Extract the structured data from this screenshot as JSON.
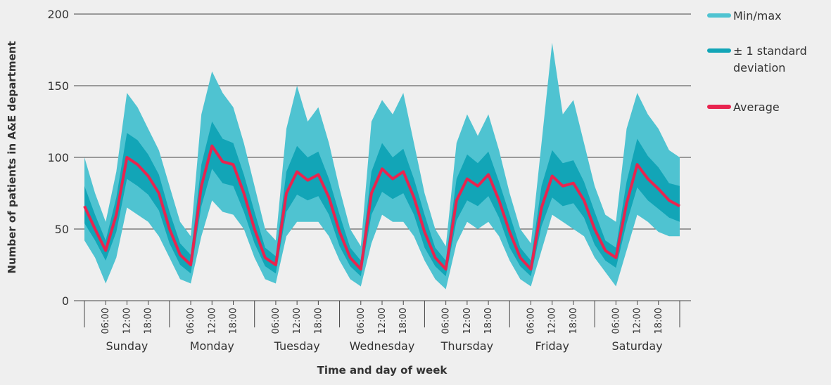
{
  "chart_data": {
    "type": "band-line",
    "y_label": "Number of patients in A&E department",
    "x_label": "Time and day of week",
    "days": [
      "Sunday",
      "Monday",
      "Tuesday",
      "Wednesday",
      "Thursday",
      "Friday",
      "Saturday"
    ],
    "x": [
      0,
      3,
      6,
      9,
      12,
      15,
      18,
      21,
      24,
      27,
      30,
      33,
      36,
      39,
      42,
      45,
      48,
      51,
      54,
      57,
      60,
      63,
      66,
      69,
      72,
      75,
      78,
      81,
      84,
      87,
      90,
      93,
      96,
      99,
      102,
      105,
      108,
      111,
      114,
      117,
      120,
      123,
      126,
      129,
      132,
      135,
      138,
      141,
      144,
      147,
      150,
      153,
      156,
      159,
      162,
      165,
      168
    ],
    "series": [
      {
        "name": "Min/max",
        "color": "#4fc3d1",
        "upper": [
          100,
          75,
          55,
          90,
          145,
          135,
          120,
          105,
          80,
          55,
          45,
          130,
          160,
          145,
          135,
          110,
          80,
          50,
          42,
          120,
          150,
          125,
          135,
          110,
          78,
          50,
          38,
          125,
          140,
          130,
          145,
          110,
          75,
          50,
          38,
          110,
          130,
          115,
          130,
          105,
          75,
          50,
          40,
          110,
          180,
          130,
          140,
          110,
          80,
          60,
          55,
          120,
          145,
          130,
          120,
          105,
          100
        ],
        "lower": [
          42,
          30,
          12,
          30,
          65,
          60,
          55,
          45,
          30,
          15,
          12,
          45,
          70,
          62,
          60,
          50,
          30,
          15,
          12,
          45,
          55,
          55,
          55,
          45,
          28,
          15,
          10,
          40,
          60,
          55,
          55,
          45,
          28,
          15,
          8,
          40,
          55,
          50,
          55,
          45,
          28,
          15,
          10,
          35,
          60,
          55,
          50,
          45,
          30,
          20,
          10,
          35,
          60,
          55,
          48,
          45,
          45
        ]
      },
      {
        "name": "± 1 standard deviation",
        "color": "#12a5b7",
        "upper": [
          80,
          60,
          42,
          72,
          117,
          112,
          102,
          88,
          62,
          40,
          32,
          95,
          125,
          113,
          110,
          88,
          62,
          37,
          31,
          90,
          108,
          100,
          104,
          85,
          60,
          37,
          28,
          90,
          110,
          100,
          106,
          85,
          60,
          37,
          28,
          85,
          102,
          96,
          104,
          83,
          60,
          37,
          28,
          80,
          105,
          96,
          98,
          83,
          62,
          42,
          37,
          83,
          113,
          101,
          93,
          82,
          80
        ],
        "lower": [
          54,
          42,
          28,
          48,
          85,
          80,
          74,
          63,
          40,
          25,
          19,
          66,
          92,
          82,
          80,
          62,
          40,
          24,
          19,
          62,
          74,
          70,
          73,
          60,
          38,
          24,
          17,
          60,
          76,
          71,
          75,
          60,
          37,
          24,
          17,
          56,
          70,
          66,
          73,
          58,
          37,
          24,
          17,
          52,
          72,
          66,
          68,
          58,
          39,
          28,
          23,
          54,
          79,
          70,
          64,
          58,
          55
        ]
      },
      {
        "name": "Average",
        "color": "#e8244f",
        "values": [
          66,
          50,
          35,
          60,
          100,
          95,
          87,
          75,
          50,
          32,
          25,
          80,
          108,
          97,
          95,
          75,
          50,
          30,
          25,
          75,
          90,
          84,
          88,
          72,
          48,
          30,
          22,
          75,
          92,
          85,
          90,
          72,
          48,
          30,
          22,
          70,
          85,
          80,
          88,
          70,
          48,
          30,
          22,
          65,
          87,
          80,
          82,
          70,
          50,
          35,
          30,
          68,
          95,
          85,
          78,
          70,
          66
        ]
      }
    ],
    "xlim": [
      0,
      168
    ],
    "ylim": [
      0,
      200
    ],
    "yticks": [
      0,
      50,
      100,
      150,
      200
    ],
    "day_boundaries": [
      0,
      24,
      48,
      72,
      96,
      120,
      144,
      168
    ],
    "xticks": [
      {
        "value": 6,
        "label": "06:00"
      },
      {
        "value": 12,
        "label": "12:00"
      },
      {
        "value": 18,
        "label": "18:00"
      },
      {
        "value": 30,
        "label": "06:00"
      },
      {
        "value": 36,
        "label": "12:00"
      },
      {
        "value": 42,
        "label": "18:00"
      },
      {
        "value": 54,
        "label": "06:00"
      },
      {
        "value": 60,
        "label": "12:00"
      },
      {
        "value": 66,
        "label": "18:00"
      },
      {
        "value": 78,
        "label": "06:00"
      },
      {
        "value": 84,
        "label": "12:00"
      },
      {
        "value": 90,
        "label": "18:00"
      },
      {
        "value": 102,
        "label": "06:00"
      },
      {
        "value": 108,
        "label": "12:00"
      },
      {
        "value": 114,
        "label": "18:00"
      },
      {
        "value": 126,
        "label": "06:00"
      },
      {
        "value": 132,
        "label": "12:00"
      },
      {
        "value": 138,
        "label": "18:00"
      },
      {
        "value": 150,
        "label": "06:00"
      },
      {
        "value": 156,
        "label": "12:00"
      },
      {
        "value": 162,
        "label": "18:00"
      }
    ],
    "grid": true,
    "legend": "right"
  }
}
